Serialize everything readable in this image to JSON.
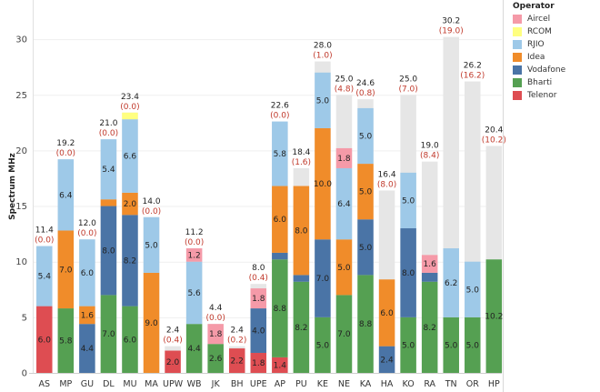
{
  "chart_data": {
    "type": "bar",
    "stacked": true,
    "title": "",
    "xlabel": "",
    "ylabel": "Spectrum MHz",
    "ylim": [
      0,
      32
    ],
    "yticks": [
      0,
      5,
      10,
      15,
      20,
      25,
      30
    ],
    "grid": true,
    "legend": {
      "title": "Operator",
      "placement": "right"
    },
    "unallocated_color": "#e6e6e6",
    "operators": [
      {
        "name": "Aircel",
        "color": "#f59aa8"
      },
      {
        "name": "RCOM",
        "color": "#ffff80"
      },
      {
        "name": "RJIO",
        "color": "#9ec9e8"
      },
      {
        "name": "Idea",
        "color": "#f08c2a"
      },
      {
        "name": "Vodafone",
        "color": "#4a74a6"
      },
      {
        "name": "Bharti",
        "color": "#55a052"
      },
      {
        "name": "Telenor",
        "color": "#de4d52"
      }
    ],
    "stack_order_bottom_to_top": [
      "Telenor",
      "Bharti",
      "Vodafone",
      "Idea",
      "RJIO",
      "RCOM",
      "Aircel"
    ],
    "categories": [
      "AS",
      "MP",
      "GU",
      "DL",
      "MU",
      "MA",
      "UPW",
      "WB",
      "JK",
      "BH",
      "UPE",
      "AP",
      "PU",
      "KE",
      "NE",
      "KA",
      "HA",
      "KO",
      "RA",
      "TN",
      "OR",
      "HP"
    ],
    "series": [
      {
        "name": "Telenor",
        "values": [
          6.0,
          0,
          0,
          0,
          0,
          0,
          2.0,
          0,
          0,
          2.2,
          1.8,
          1.4,
          0,
          0,
          0,
          0,
          0,
          0,
          0,
          0,
          0,
          0
        ]
      },
      {
        "name": "Bharti",
        "values": [
          0,
          5.8,
          0,
          7.0,
          6.0,
          0,
          0,
          4.4,
          2.6,
          0,
          0,
          8.8,
          8.2,
          5.0,
          7.0,
          8.8,
          0,
          5.0,
          8.2,
          5.0,
          5.0,
          10.2
        ]
      },
      {
        "name": "Vodafone",
        "values": [
          0,
          0,
          4.4,
          8.0,
          8.2,
          0,
          0,
          0,
          0,
          0,
          4.0,
          0.6,
          0.6,
          7.0,
          0,
          5.0,
          2.4,
          8.0,
          0.8,
          0,
          0,
          0
        ]
      },
      {
        "name": "Idea",
        "values": [
          0,
          7.0,
          1.6,
          0.6,
          2.0,
          9.0,
          0,
          0,
          0,
          0,
          0,
          6.0,
          8.0,
          10.0,
          5.0,
          5.0,
          6.0,
          0,
          0,
          0,
          0,
          0
        ]
      },
      {
        "name": "RJIO",
        "values": [
          5.4,
          6.4,
          6.0,
          5.4,
          6.6,
          5.0,
          0,
          5.6,
          0,
          0,
          0,
          5.8,
          0,
          5.0,
          6.4,
          5.0,
          0,
          5.0,
          0,
          6.2,
          5.0,
          0
        ]
      },
      {
        "name": "RCOM",
        "values": [
          0,
          0,
          0,
          0,
          0.6,
          0,
          0,
          0,
          0,
          0,
          0,
          0,
          0,
          0,
          0,
          0,
          0,
          0,
          0,
          0,
          0,
          0
        ]
      },
      {
        "name": "Aircel",
        "values": [
          0,
          0,
          0,
          0,
          0,
          0,
          0,
          1.2,
          1.8,
          0,
          1.8,
          0,
          0,
          0,
          1.8,
          0,
          0,
          0,
          1.6,
          0,
          0,
          0
        ]
      }
    ],
    "unallocated": [
      0.0,
      0.0,
      0.0,
      0.0,
      0.0,
      0.0,
      0.4,
      0.0,
      0.0,
      0.2,
      0.4,
      0.0,
      1.6,
      1.0,
      4.8,
      0.8,
      8.0,
      7.0,
      8.4,
      19.0,
      16.2,
      10.2
    ],
    "totals": [
      11.4,
      19.2,
      12.0,
      21.0,
      23.4,
      14.0,
      2.4,
      11.2,
      4.4,
      2.4,
      8.0,
      22.6,
      18.4,
      28.0,
      25.0,
      24.6,
      16.4,
      25.0,
      19.0,
      30.2,
      26.2,
      20.4
    ],
    "total_labels": [
      "11.4",
      "19.2",
      "12.0",
      "21.0",
      "23.4",
      "14.0",
      "2.4",
      "11.2",
      "4.4",
      "2.4",
      "8.0",
      "22.6",
      "18.4",
      "28.0",
      "25.0",
      "24.6",
      "16.4",
      "25.0",
      "19.0",
      "30.2",
      "26.2",
      "20.4"
    ],
    "unallocated_labels": [
      "(0.0)",
      "(0.0)",
      "(0.0)",
      "(0.0)",
      "(0.0)",
      "(0.0)",
      "(0.4)",
      "(0.0)",
      "(0.0)",
      "(0.2)",
      "(0.4)",
      "(0.0)",
      "(1.6)",
      "(1.0)",
      "(4.8)",
      "(0.8)",
      "(8.0)",
      "(7.0)",
      "(8.4)",
      "(19.0)",
      "(16.2)",
      "(10.2)"
    ]
  }
}
